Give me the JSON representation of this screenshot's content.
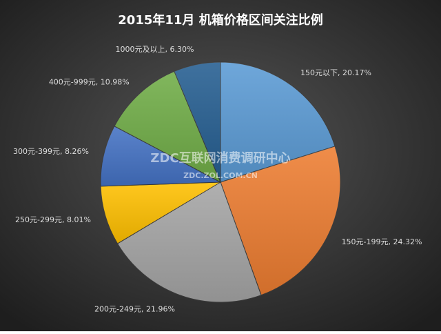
{
  "chart_data": {
    "type": "pie",
    "title": "2015年11月  机箱价格区间关注比例",
    "watermark": [
      "ZDC互联网消费调研中心",
      "ZDC.ZOL.COM.CN"
    ],
    "values": [
      20.17,
      24.32,
      21.96,
      8.01,
      8.26,
      10.98,
      6.3
    ],
    "value_labels": [
      "150元以下, 20.17%",
      "150元-199元, 24.32%",
      "200元-249元, 21.96%",
      "250元-299元, 8.01%",
      "300元-399元, 8.26%",
      "400元-999元, 10.98%",
      "1000元及以上, 6.30%"
    ],
    "colors": [
      "#5b9bd5",
      "#ed7d31",
      "#a5a5a5",
      "#ffc000",
      "#4472c4",
      "#70ad47",
      "#255e91"
    ]
  }
}
